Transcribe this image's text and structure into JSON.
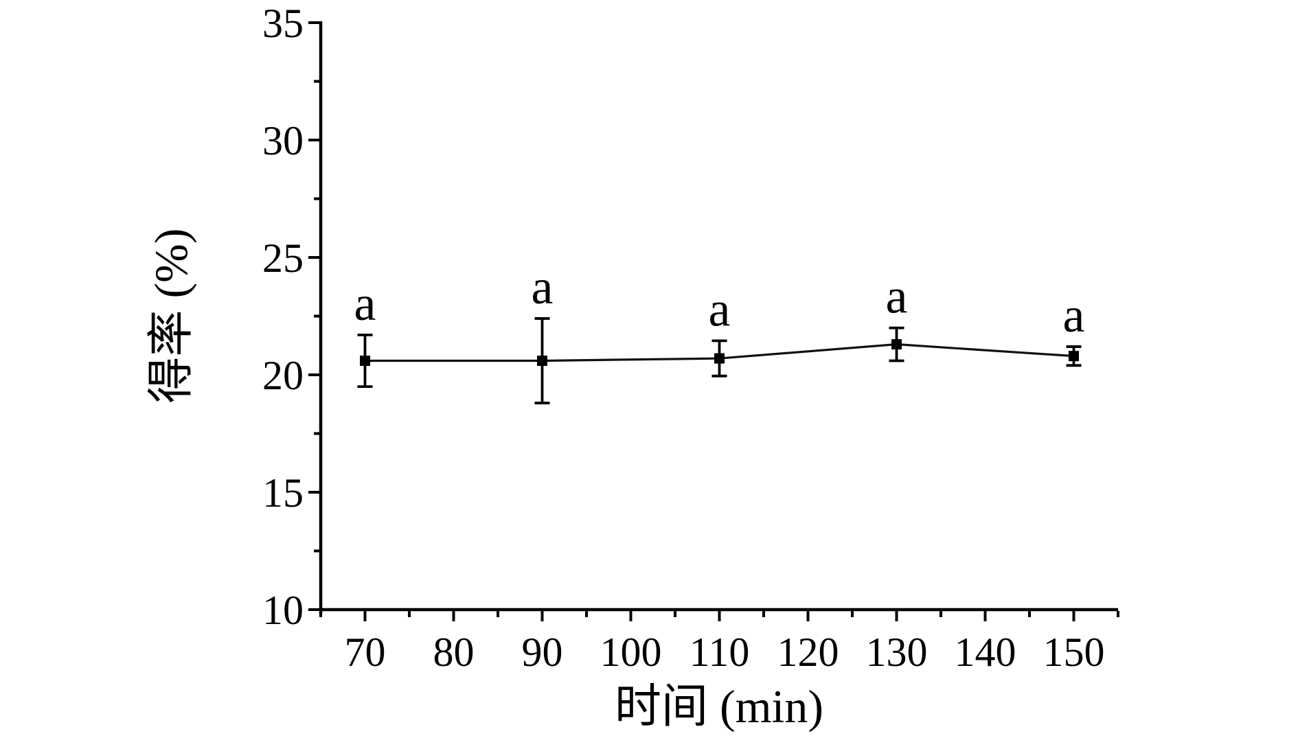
{
  "figure": {
    "background": "#ffffff",
    "axis_color": "#000000",
    "text_color": "#000000",
    "line_color": "#111111"
  },
  "chart_data": {
    "type": "line",
    "title": "",
    "xlabel": "时间 (min)",
    "ylabel": "得率 (%)",
    "x": [
      70,
      90,
      110,
      130,
      150
    ],
    "series": [
      {
        "name": "得率",
        "values": [
          20.6,
          20.6,
          20.7,
          21.3,
          20.8
        ],
        "errors": [
          1.1,
          1.8,
          0.75,
          0.7,
          0.4
        ],
        "marker": "filled-square",
        "color": "#000000"
      }
    ],
    "point_annotations": [
      "a",
      "a",
      "a",
      "a",
      "a"
    ],
    "xlim": [
      65,
      155
    ],
    "ylim": [
      10,
      35
    ],
    "x_major_ticks": [
      70,
      80,
      90,
      100,
      110,
      120,
      130,
      140,
      150
    ],
    "x_minor_ticks": [
      65,
      75,
      85,
      95,
      105,
      115,
      125,
      135,
      145,
      155
    ],
    "y_major_ticks": [
      10,
      15,
      20,
      25,
      30,
      35
    ],
    "y_minor_ticks": [
      12.5,
      17.5,
      22.5,
      27.5,
      32.5
    ],
    "grid": false,
    "legend": false
  }
}
